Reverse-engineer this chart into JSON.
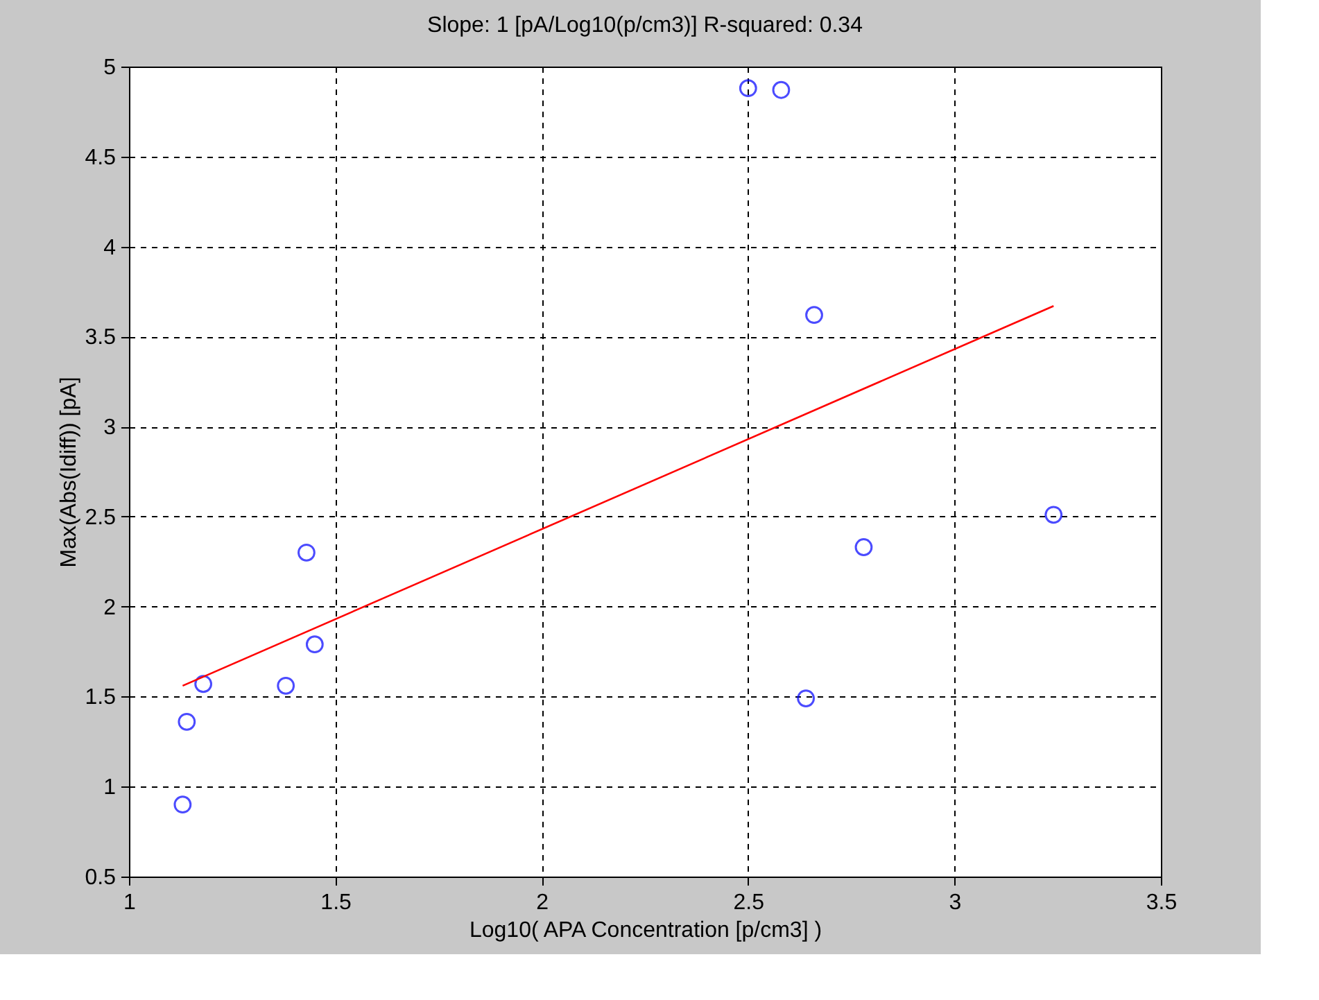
{
  "chart_data": {
    "type": "scatter",
    "title": "Slope: 1 [pA/Log10(p/cm3)]  R-squared: 0.34",
    "xlabel": "Log10( APA Concentration [p/cm3] )",
    "ylabel": "Max(Abs(Idiff)) [pA]",
    "series": [
      {
        "type": "scatter",
        "color": "#0000ff",
        "marker": "circle",
        "x": [
          1.13,
          1.14,
          1.18,
          1.38,
          1.43,
          1.45,
          2.5,
          2.58,
          2.66,
          2.64,
          2.78,
          3.24
        ],
        "values": [
          0.9,
          1.36,
          1.57,
          1.56,
          2.3,
          1.79,
          4.88,
          4.87,
          3.62,
          1.49,
          2.33,
          2.51
        ]
      },
      {
        "type": "line",
        "color": "#ff0000",
        "x": [
          1.13,
          3.24
        ],
        "values": [
          1.56,
          3.67
        ]
      }
    ],
    "xlim": [
      1,
      3.5
    ],
    "xticks": [
      1,
      1.5,
      2,
      2.5,
      3,
      3.5
    ],
    "ylim": [
      0.5,
      5
    ],
    "yticks": [
      0.5,
      1,
      1.5,
      2,
      2.5,
      3,
      3.5,
      4,
      4.5,
      5
    ],
    "grid": true,
    "legend": false
  }
}
